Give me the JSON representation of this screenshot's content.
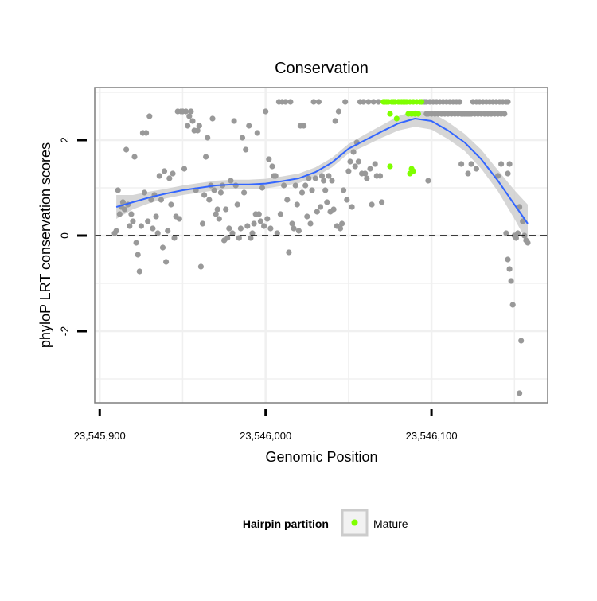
{
  "chart_data": {
    "type": "scatter",
    "title": "Conservation",
    "xlabel": "Genomic Position",
    "ylabel": "phyloP LRT conservation scores",
    "xlim": [
      23545897,
      23546170
    ],
    "ylim": [
      -3.5,
      3.1
    ],
    "grid": true,
    "x_ticks": [
      23545900,
      23546000,
      23546100
    ],
    "x_tick_labels": [
      "23,545,900",
      "23,546,000",
      "23,546,100"
    ],
    "y_ticks": [
      -2,
      0,
      2
    ],
    "y_tick_labels": [
      "-2",
      "0",
      "2"
    ],
    "reference_line": {
      "y": 0,
      "style": "dashed"
    },
    "legend": {
      "title": "Hairpin partition",
      "position": "bottom",
      "entries": [
        {
          "label": "Mature",
          "color": "#7fff00"
        }
      ]
    },
    "colors": {
      "other": "#999999",
      "mature": "#7fff00",
      "smooth": "#3366ff",
      "band": "#cccccc"
    },
    "series": [
      {
        "name": "",
        "color": "#999999",
        "points": [
          [
            23545909,
            0.05
          ],
          [
            23545910,
            0.1
          ],
          [
            23545911,
            0.95
          ],
          [
            23545912,
            0.45
          ],
          [
            23545913,
            0.6
          ],
          [
            23545914,
            0.7
          ],
          [
            23545915,
            0.55
          ],
          [
            23545916,
            1.8
          ],
          [
            23545917,
            0.65
          ],
          [
            23545918,
            0.2
          ],
          [
            23545919,
            0.45
          ],
          [
            23545920,
            0.3
          ],
          [
            23545921,
            1.65
          ],
          [
            23545922,
            -0.15
          ],
          [
            23545923,
            -0.4
          ],
          [
            23545924,
            -0.75
          ],
          [
            23545925,
            0.2
          ],
          [
            23545926,
            2.15
          ],
          [
            23545927,
            0.9
          ],
          [
            23545928,
            2.15
          ],
          [
            23545929,
            0.3
          ],
          [
            23545930,
            2.5
          ],
          [
            23545931,
            0.75
          ],
          [
            23545932,
            0.15
          ],
          [
            23545933,
            0.85
          ],
          [
            23545934,
            0.4
          ],
          [
            23545935,
            0.05
          ],
          [
            23545936,
            1.25
          ],
          [
            23545937,
            0.75
          ],
          [
            23545938,
            -0.25
          ],
          [
            23545939,
            1.35
          ],
          [
            23545940,
            -0.55
          ],
          [
            23545941,
            0.1
          ],
          [
            23545942,
            1.2
          ],
          [
            23545943,
            0.65
          ],
          [
            23545944,
            1.3
          ],
          [
            23545945,
            -0.05
          ],
          [
            23545946,
            0.4
          ],
          [
            23545947,
            2.6
          ],
          [
            23545948,
            0.35
          ],
          [
            23545949,
            2.6
          ],
          [
            23545950,
            2.6
          ],
          [
            23545951,
            1.4
          ],
          [
            23545952,
            2.6
          ],
          [
            23545953,
            2.3
          ],
          [
            23545954,
            2.5
          ],
          [
            23545955,
            2.6
          ],
          [
            23545956,
            2.4
          ],
          [
            23545957,
            2.2
          ],
          [
            23545958,
            0.95
          ],
          [
            23545959,
            2.2
          ],
          [
            23545960,
            2.3
          ],
          [
            23545961,
            -0.65
          ],
          [
            23545962,
            0.25
          ],
          [
            23545963,
            0.85
          ],
          [
            23545964,
            1.65
          ],
          [
            23545965,
            2.05
          ],
          [
            23545966,
            0.75
          ],
          [
            23545967,
            1.05
          ],
          [
            23545968,
            2.45
          ],
          [
            23545969,
            0.95
          ],
          [
            23545970,
            0.45
          ],
          [
            23545971,
            0.55
          ],
          [
            23545972,
            0.35
          ],
          [
            23545973,
            0.9
          ],
          [
            23545974,
            1.05
          ],
          [
            23545975,
            -0.1
          ],
          [
            23545976,
            0.55
          ],
          [
            23545977,
            -0.05
          ],
          [
            23545978,
            0.15
          ],
          [
            23545979,
            1.15
          ],
          [
            23545980,
            0.05
          ],
          [
            23545981,
            2.4
          ],
          [
            23545982,
            1.05
          ],
          [
            23545983,
            0.65
          ],
          [
            23545984,
            -0.05
          ],
          [
            23545985,
            0.15
          ],
          [
            23545986,
            2.05
          ],
          [
            23545987,
            0.9
          ],
          [
            23545988,
            1.8
          ],
          [
            23545989,
            0.2
          ],
          [
            23545990,
            2.3
          ],
          [
            23545991,
            -0.05
          ],
          [
            23545992,
            0.05
          ],
          [
            23545993,
            0.25
          ],
          [
            23545994,
            0.45
          ],
          [
            23545995,
            2.15
          ],
          [
            23545996,
            0.45
          ],
          [
            23545997,
            0.3
          ],
          [
            23545998,
            1.0
          ],
          [
            23545999,
            0.2
          ],
          [
            23546000,
            2.6
          ],
          [
            23546001,
            0.35
          ],
          [
            23546002,
            1.6
          ],
          [
            23546003,
            0.15
          ],
          [
            23546004,
            1.45
          ],
          [
            23546005,
            1.25
          ],
          [
            23546006,
            1.25
          ],
          [
            23546007,
            0.05
          ],
          [
            23546008,
            2.8
          ],
          [
            23546009,
            0.45
          ],
          [
            23546010,
            2.8
          ],
          [
            23546011,
            1.05
          ],
          [
            23546012,
            2.8
          ],
          [
            23546013,
            0.75
          ],
          [
            23546014,
            -0.35
          ],
          [
            23546015,
            2.8
          ],
          [
            23546016,
            0.25
          ],
          [
            23546017,
            0.15
          ],
          [
            23546018,
            1.05
          ],
          [
            23546019,
            0.65
          ],
          [
            23546020,
            0.1
          ],
          [
            23546021,
            2.3
          ],
          [
            23546022,
            0.9
          ],
          [
            23546023,
            2.3
          ],
          [
            23546024,
            1.05
          ],
          [
            23546025,
            0.4
          ],
          [
            23546026,
            1.2
          ],
          [
            23546027,
            0.25
          ],
          [
            23546028,
            0.95
          ],
          [
            23546029,
            2.8
          ],
          [
            23546030,
            1.2
          ],
          [
            23546031,
            0.5
          ],
          [
            23546032,
            2.8
          ],
          [
            23546033,
            0.6
          ],
          [
            23546034,
            1.25
          ],
          [
            23546035,
            1.15
          ],
          [
            23546036,
            0.95
          ],
          [
            23546037,
            0.7
          ],
          [
            23546038,
            1.25
          ],
          [
            23546039,
            0.5
          ],
          [
            23546040,
            1.15
          ],
          [
            23546041,
            0.55
          ],
          [
            23546042,
            2.4
          ],
          [
            23546043,
            0.2
          ],
          [
            23546044,
            2.6
          ],
          [
            23546045,
            0.15
          ],
          [
            23546046,
            0.25
          ],
          [
            23546047,
            0.95
          ],
          [
            23546048,
            2.8
          ],
          [
            23546049,
            0.75
          ],
          [
            23546050,
            1.35
          ],
          [
            23546051,
            1.55
          ],
          [
            23546052,
            0.6
          ],
          [
            23546053,
            1.75
          ],
          [
            23546054,
            1.45
          ],
          [
            23546055,
            1.95
          ],
          [
            23546056,
            1.55
          ],
          [
            23546057,
            2.8
          ],
          [
            23546058,
            1.3
          ],
          [
            23546059,
            2.8
          ],
          [
            23546060,
            1.3
          ],
          [
            23546061,
            1.2
          ],
          [
            23546062,
            2.8
          ],
          [
            23546063,
            1.4
          ],
          [
            23546064,
            0.65
          ],
          [
            23546065,
            2.8
          ],
          [
            23546066,
            1.5
          ],
          [
            23546067,
            1.25
          ],
          [
            23546068,
            2.8
          ],
          [
            23546069,
            1.25
          ],
          [
            23546070,
            0.7
          ],
          [
            23546095,
            2.8
          ],
          [
            23546096,
            2.8
          ],
          [
            23546097,
            2.55
          ],
          [
            23546097,
            2.8
          ],
          [
            23546098,
            2.55
          ],
          [
            23546099,
            2.8
          ],
          [
            23546100,
            2.55
          ],
          [
            23546101,
            2.8
          ],
          [
            23546102,
            2.55
          ],
          [
            23546103,
            2.8
          ],
          [
            23546104,
            2.55
          ],
          [
            23546105,
            2.8
          ],
          [
            23546106,
            2.55
          ],
          [
            23546107,
            2.8
          ],
          [
            23546108,
            2.55
          ],
          [
            23546109,
            2.8
          ],
          [
            23546110,
            2.55
          ],
          [
            23546111,
            2.8
          ],
          [
            23546112,
            2.55
          ],
          [
            23546113,
            2.8
          ],
          [
            23546114,
            2.55
          ],
          [
            23546115,
            2.8
          ],
          [
            23546116,
            2.55
          ],
          [
            23546117,
            2.8
          ],
          [
            23546118,
            2.55
          ],
          [
            23546119,
            2.55
          ],
          [
            23546120,
            2.55
          ],
          [
            23546121,
            2.55
          ],
          [
            23546122,
            2.55
          ],
          [
            23546123,
            2.55
          ],
          [
            23546124,
            2.55
          ],
          [
            23546125,
            2.8
          ],
          [
            23546126,
            2.55
          ],
          [
            23546127,
            2.8
          ],
          [
            23546128,
            2.55
          ],
          [
            23546129,
            2.8
          ],
          [
            23546130,
            2.55
          ],
          [
            23546131,
            2.8
          ],
          [
            23546132,
            2.55
          ],
          [
            23546133,
            2.8
          ],
          [
            23546134,
            2.55
          ],
          [
            23546135,
            2.8
          ],
          [
            23546136,
            2.55
          ],
          [
            23546137,
            2.8
          ],
          [
            23546138,
            2.55
          ],
          [
            23546139,
            2.8
          ],
          [
            23546140,
            2.55
          ],
          [
            23546141,
            2.8
          ],
          [
            23546142,
            2.55
          ],
          [
            23546143,
            2.8
          ],
          [
            23546144,
            2.55
          ],
          [
            23546145,
            2.8
          ],
          [
            23546146,
            2.8
          ],
          [
            23546098,
            1.15
          ],
          [
            23546118,
            1.5
          ],
          [
            23546122,
            1.3
          ],
          [
            23546124,
            1.5
          ],
          [
            23546127,
            1.4
          ],
          [
            23546140,
            1.25
          ],
          [
            23546142,
            1.5
          ],
          [
            23546146,
            1.3
          ],
          [
            23546147,
            1.5
          ],
          [
            23546145,
            0.05
          ],
          [
            23546146,
            -0.5
          ],
          [
            23546147,
            -0.7
          ],
          [
            23546148,
            -0.95
          ],
          [
            23546149,
            -1.45
          ],
          [
            23546150,
            0.0
          ],
          [
            23546151,
            -0.05
          ],
          [
            23546152,
            0.05
          ],
          [
            23546153,
            0.6
          ],
          [
            23546153,
            -3.3
          ],
          [
            23546154,
            -2.2
          ],
          [
            23546155,
            0.3
          ],
          [
            23546156,
            0.0
          ],
          [
            23546157,
            -0.1
          ],
          [
            23546158,
            -0.15
          ]
        ]
      },
      {
        "name": "Mature",
        "color": "#7fff00",
        "points": [
          [
            23546071,
            2.8
          ],
          [
            23546072,
            2.8
          ],
          [
            23546073,
            2.8
          ],
          [
            23546074,
            2.8
          ],
          [
            23546075,
            2.55
          ],
          [
            23546076,
            2.8
          ],
          [
            23546077,
            2.8
          ],
          [
            23546078,
            2.8
          ],
          [
            23546079,
            2.45
          ],
          [
            23546080,
            2.8
          ],
          [
            23546081,
            2.8
          ],
          [
            23546082,
            2.8
          ],
          [
            23546083,
            2.8
          ],
          [
            23546084,
            2.8
          ],
          [
            23546085,
            2.8
          ],
          [
            23546086,
            2.55
          ],
          [
            23546087,
            2.8
          ],
          [
            23546088,
            2.55
          ],
          [
            23546089,
            2.8
          ],
          [
            23546090,
            2.55
          ],
          [
            23546091,
            2.8
          ],
          [
            23546092,
            2.55
          ],
          [
            23546093,
            2.8
          ],
          [
            23546094,
            2.8
          ],
          [
            23546075,
            1.45
          ],
          [
            23546087,
            1.3
          ],
          [
            23546088,
            1.4
          ],
          [
            23546089,
            1.35
          ]
        ]
      }
    ],
    "smooth": {
      "x": [
        23545910,
        23545920,
        23545930,
        23545940,
        23545950,
        23545960,
        23545970,
        23545980,
        23545990,
        23546000,
        23546010,
        23546020,
        23546030,
        23546040,
        23546050,
        23546060,
        23546070,
        23546080,
        23546090,
        23546100,
        23546110,
        23546120,
        23546130,
        23546140,
        23546150,
        23546158
      ],
      "y": [
        0.6,
        0.7,
        0.8,
        0.88,
        0.95,
        1.0,
        1.05,
        1.07,
        1.07,
        1.09,
        1.14,
        1.2,
        1.33,
        1.53,
        1.82,
        2.0,
        2.18,
        2.35,
        2.45,
        2.4,
        2.2,
        1.95,
        1.6,
        1.15,
        0.65,
        0.25
      ],
      "band": [
        0.25,
        0.15,
        0.12,
        0.1,
        0.1,
        0.1,
        0.1,
        0.1,
        0.1,
        0.1,
        0.1,
        0.1,
        0.1,
        0.1,
        0.1,
        0.12,
        0.13,
        0.15,
        0.17,
        0.18,
        0.18,
        0.18,
        0.2,
        0.22,
        0.3,
        0.4
      ]
    }
  }
}
